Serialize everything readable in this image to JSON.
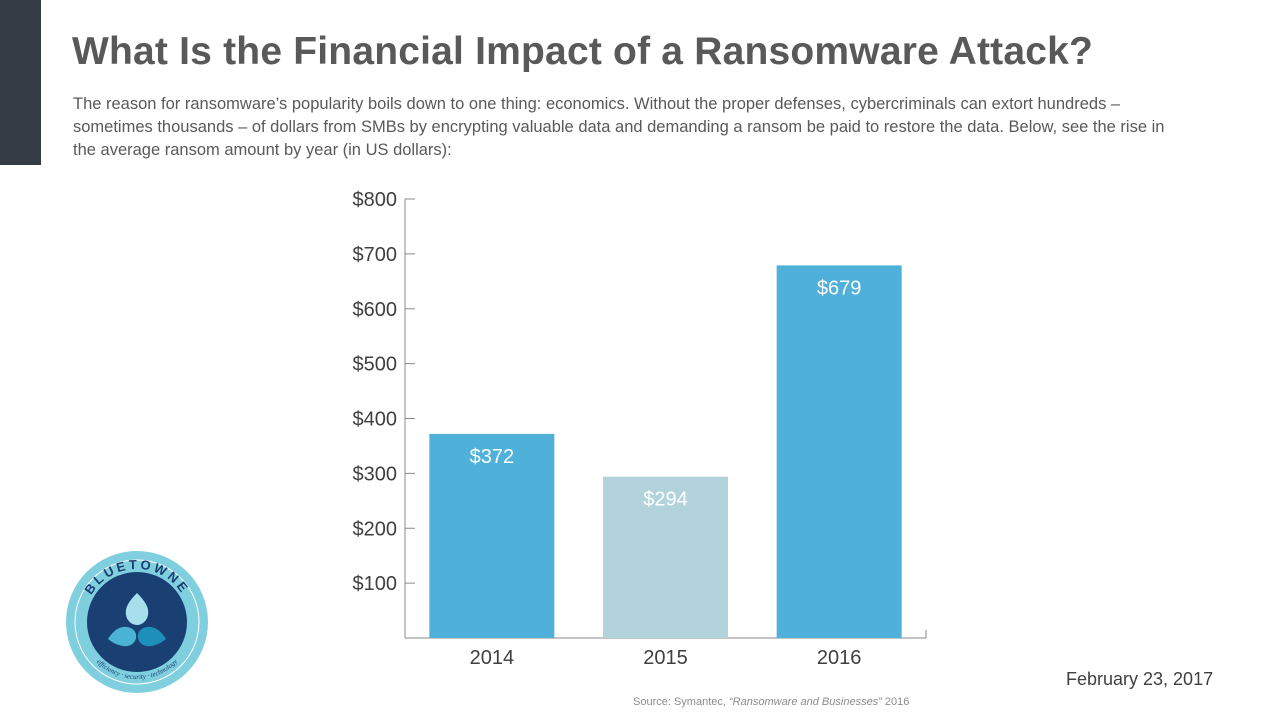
{
  "slide": {
    "title": "What Is the Financial Impact of a Ransomware Attack?",
    "intro": "The reason for ransomware’s popularity boils down to one thing: economics. Without the proper defenses, cybercriminals can extort hundreds – sometimes thousands – of dollars from SMBs by encrypting valuable data and demanding a ransom be paid to restore the data. Below, see the rise in the average ransom amount by year (in US dollars):",
    "date": "February 23, 2017",
    "source_prefix": "Source: Symantec, ",
    "source_title": "“Ransomware and Businesses”",
    "source_year": " 2016",
    "accent_color": "#343c45"
  },
  "logo": {
    "brand_text": "BLUETOWNE",
    "tagline": "efficiency · security · technology",
    "ring_color": "#7fcfdf",
    "disc_color": "#1a3f72",
    "drop_colors": [
      "#a7e0ec",
      "#4bb3d3",
      "#1e8fb8"
    ]
  },
  "chart_data": {
    "type": "bar",
    "categories": [
      "2014",
      "2015",
      "2016"
    ],
    "values": [
      372,
      294,
      679
    ],
    "data_labels": [
      "$372",
      "$294",
      "$679"
    ],
    "bar_colors": [
      "#4fb0d9",
      "#b3d3dc",
      "#4fb0d9"
    ],
    "yticks": [
      100,
      200,
      300,
      400,
      500,
      600,
      700,
      800
    ],
    "ytick_labels": [
      "$100",
      "$200",
      "$300",
      "$400",
      "$500",
      "$600",
      "$700",
      "$800"
    ],
    "ylim": [
      0,
      800
    ],
    "title": "",
    "xlabel": "",
    "ylabel": "",
    "grid": false
  }
}
